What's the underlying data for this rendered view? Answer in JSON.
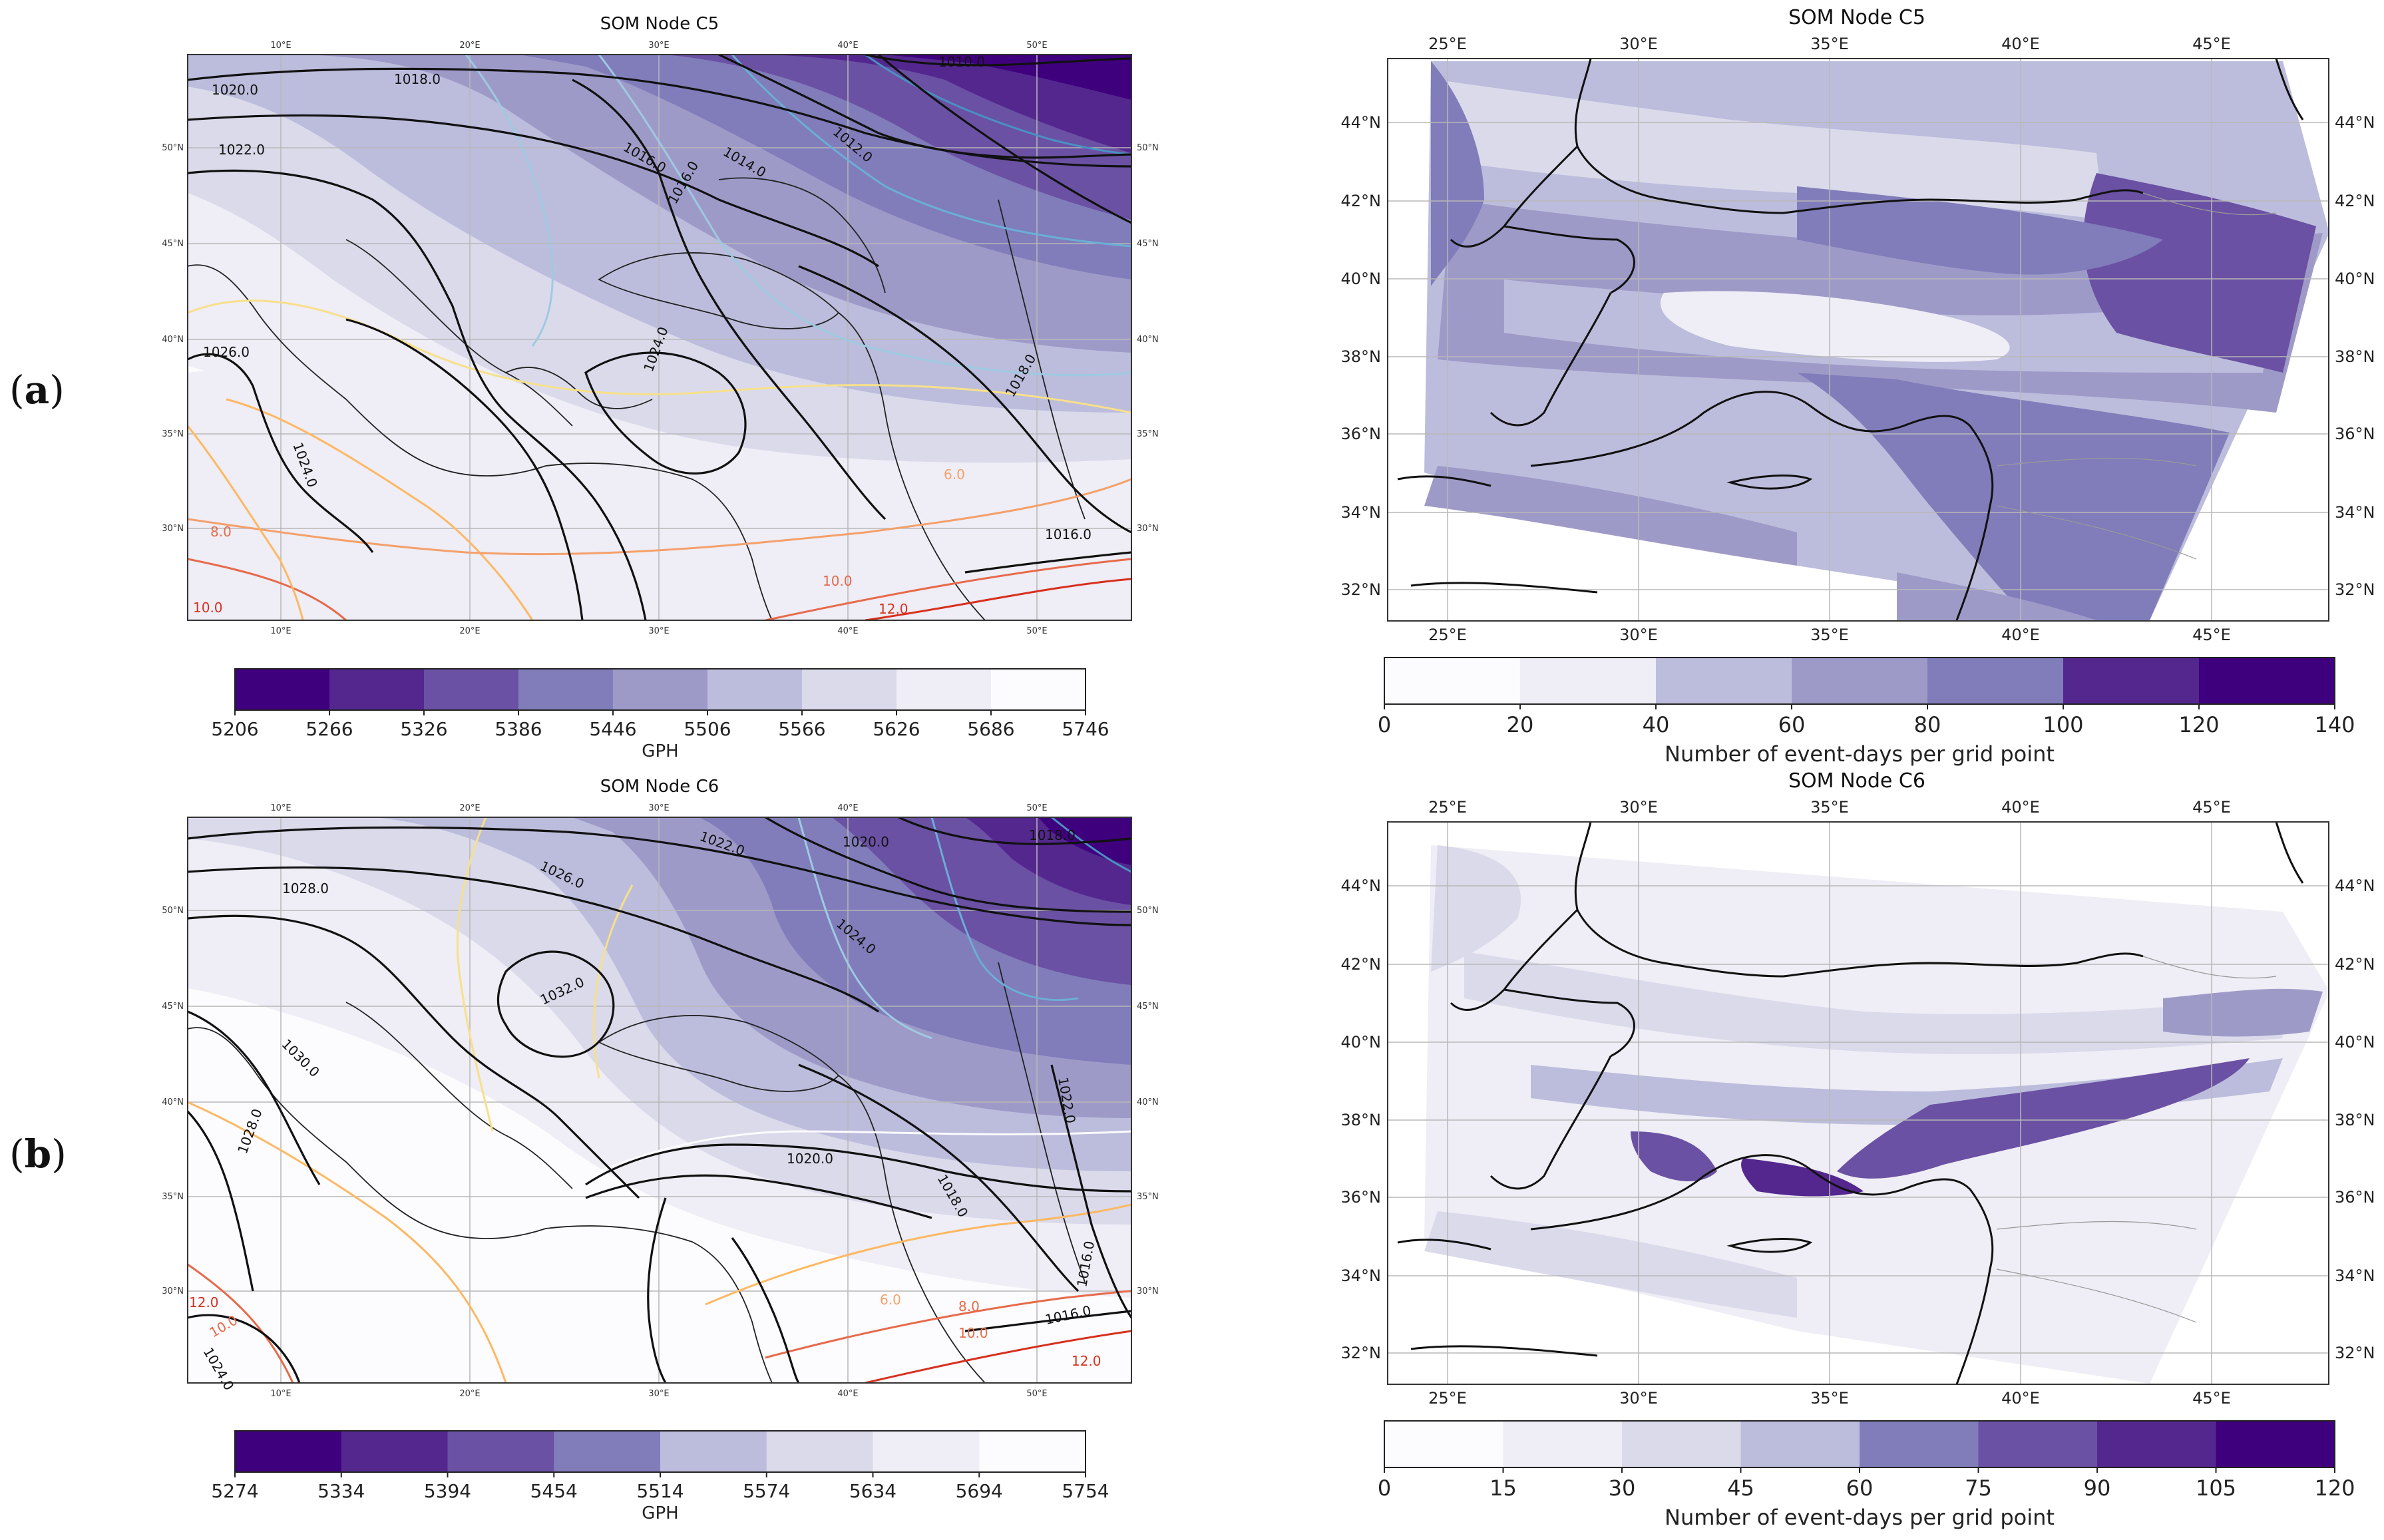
{
  "rows": [
    {
      "label_prefix": "(",
      "label_letter": "a",
      "label_suffix": ")"
    },
    {
      "label_prefix": "(",
      "label_letter": "b",
      "label_suffix": ")"
    }
  ],
  "panels": [
    {
      "id": "a-left",
      "title": "SOM Node C5",
      "kind": "gph-map",
      "top_ticks": [
        "10°E",
        "20°E",
        "30°E",
        "40°E",
        "50°E"
      ],
      "bottom_ticks": [
        "10°E",
        "20°E",
        "30°E",
        "40°E",
        "50°E"
      ],
      "right_ticks": [
        "50°N",
        "45°N",
        "40°N",
        "35°N",
        "30°N"
      ],
      "left_ticks": [
        "50°N",
        "45°N",
        "40°N",
        "35°N",
        "30°N"
      ],
      "contour_labels": [
        "1010.0",
        "1012.0",
        "1014.0",
        "1016.0",
        "1018.0",
        "1020.0",
        "1022.0",
        "1026.0",
        "1024.0",
        "1024.0",
        "1016.0",
        "1018.0",
        "1016.0"
      ],
      "temp_labels": [
        "6.0",
        "8.0",
        "10.0",
        "12.0",
        "10.0"
      ],
      "colorbar": {
        "levels": [
          "5206",
          "5266",
          "5326",
          "5386",
          "5446",
          "5506",
          "5566",
          "5626",
          "5686",
          "5746"
        ],
        "label": "GPH"
      }
    },
    {
      "id": "a-right",
      "title": "SOM Node C5",
      "kind": "event-map",
      "top_ticks": [
        "25°E",
        "30°E",
        "35°E",
        "40°E",
        "45°E"
      ],
      "bottom_ticks": [
        "25°E",
        "30°E",
        "35°E",
        "40°E",
        "45°E"
      ],
      "left_ticks": [
        "44°N",
        "42°N",
        "40°N",
        "38°N",
        "36°N",
        "34°N",
        "32°N"
      ],
      "right_ticks": [
        "44°N",
        "42°N",
        "40°N",
        "38°N",
        "36°N",
        "34°N",
        "32°N"
      ],
      "colorbar": {
        "levels": [
          "0",
          "20",
          "40",
          "60",
          "80",
          "100",
          "120",
          "140"
        ],
        "label": "Number of event-days per grid point"
      }
    },
    {
      "id": "b-left",
      "title": "SOM Node C6",
      "kind": "gph-map",
      "top_ticks": [
        "10°E",
        "20°E",
        "30°E",
        "40°E",
        "50°E"
      ],
      "bottom_ticks": [
        "10°E",
        "20°E",
        "30°E",
        "40°E",
        "50°E"
      ],
      "right_ticks": [
        "50°N",
        "45°N",
        "40°N",
        "35°N",
        "30°N"
      ],
      "left_ticks": [
        "50°N",
        "45°N",
        "40°N",
        "35°N",
        "30°N"
      ],
      "contour_labels": [
        "1018.0",
        "1020.0",
        "1022.0",
        "1026.0",
        "1028.0",
        "1024.0",
        "1032.0",
        "1030.0",
        "1028.0",
        "1020.0",
        "1018.0",
        "1016.0",
        "1022.0",
        "1016.0",
        "1024.0"
      ],
      "temp_labels": [
        "6.0",
        "8.0",
        "10.0",
        "12.0",
        "10.0",
        "12.0"
      ],
      "colorbar": {
        "levels": [
          "5274",
          "5334",
          "5394",
          "5454",
          "5514",
          "5574",
          "5634",
          "5694",
          "5754"
        ],
        "label": "GPH"
      }
    },
    {
      "id": "b-right",
      "title": "SOM Node C6",
      "kind": "event-map",
      "top_ticks": [
        "25°E",
        "30°E",
        "35°E",
        "40°E",
        "45°E"
      ],
      "bottom_ticks": [
        "25°E",
        "30°E",
        "35°E",
        "40°E",
        "45°E"
      ],
      "left_ticks": [
        "44°N",
        "42°N",
        "40°N",
        "38°N",
        "36°N",
        "34°N",
        "32°N"
      ],
      "right_ticks": [
        "44°N",
        "42°N",
        "40°N",
        "38°N",
        "36°N",
        "34°N",
        "32°N"
      ],
      "colorbar": {
        "levels": [
          "0",
          "15",
          "30",
          "45",
          "60",
          "75",
          "90",
          "105",
          "120"
        ],
        "label": "Number of event-days per grid point"
      }
    }
  ],
  "colors": {
    "purples": [
      "#3f007d",
      "#54278f",
      "#6a51a3",
      "#807dba",
      "#9e9ac8",
      "#bcbddc",
      "#dadaeb",
      "#efedf5",
      "#fcfbfd"
    ],
    "contour": "#111111",
    "coast": "#222222",
    "grid": "#b8b8b8",
    "temp_warm": [
      "#f7e08a",
      "#fdb863",
      "#f4a06a",
      "#e66a4a",
      "#d7301f"
    ],
    "temp_cold": [
      "#9ecae1",
      "#6baed6",
      "#4a90c2"
    ]
  }
}
